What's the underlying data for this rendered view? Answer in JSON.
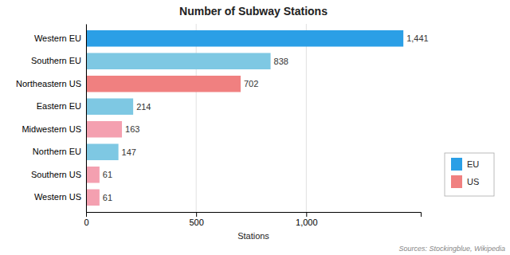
{
  "chart_data": {
    "type": "bar",
    "orientation": "horizontal",
    "title": "Number of Subway Stations",
    "xlabel": "Stations",
    "categories": [
      "Western EU",
      "Southern EU",
      "Northeastern US",
      "Eastern EU",
      "Midwestern US",
      "Northern EU",
      "Southern US",
      "Western US"
    ],
    "series": [
      {
        "name": "EU",
        "color": "#2B9FE6",
        "values": [
          1441,
          838,
          null,
          214,
          null,
          147,
          null,
          null
        ],
        "value_labels": [
          "1,441",
          "838",
          null,
          "214",
          null,
          "147",
          null,
          null
        ],
        "colors": [
          "#2B9FE6",
          "#7EC8E3",
          null,
          "#7EC8E3",
          null,
          "#7EC8E3",
          null,
          null
        ]
      },
      {
        "name": "US",
        "color": "#F08080",
        "values": [
          null,
          null,
          702,
          null,
          163,
          null,
          61,
          61
        ],
        "value_labels": [
          null,
          null,
          "702",
          null,
          "163",
          null,
          "61",
          "61"
        ],
        "colors": [
          null,
          null,
          "#F08080",
          null,
          "#F4A0B0",
          null,
          "#F4A0B0",
          "#F4A0B0"
        ]
      }
    ],
    "xlim": [
      0,
      1520
    ],
    "xticks": [
      0,
      500,
      {
        "value": 1000,
        "label": "1,000"
      }
    ],
    "grid": true,
    "data_labels": true,
    "legend": "right",
    "annotations": [
      "Sources: Stockingblue, Wikipedia"
    ]
  }
}
